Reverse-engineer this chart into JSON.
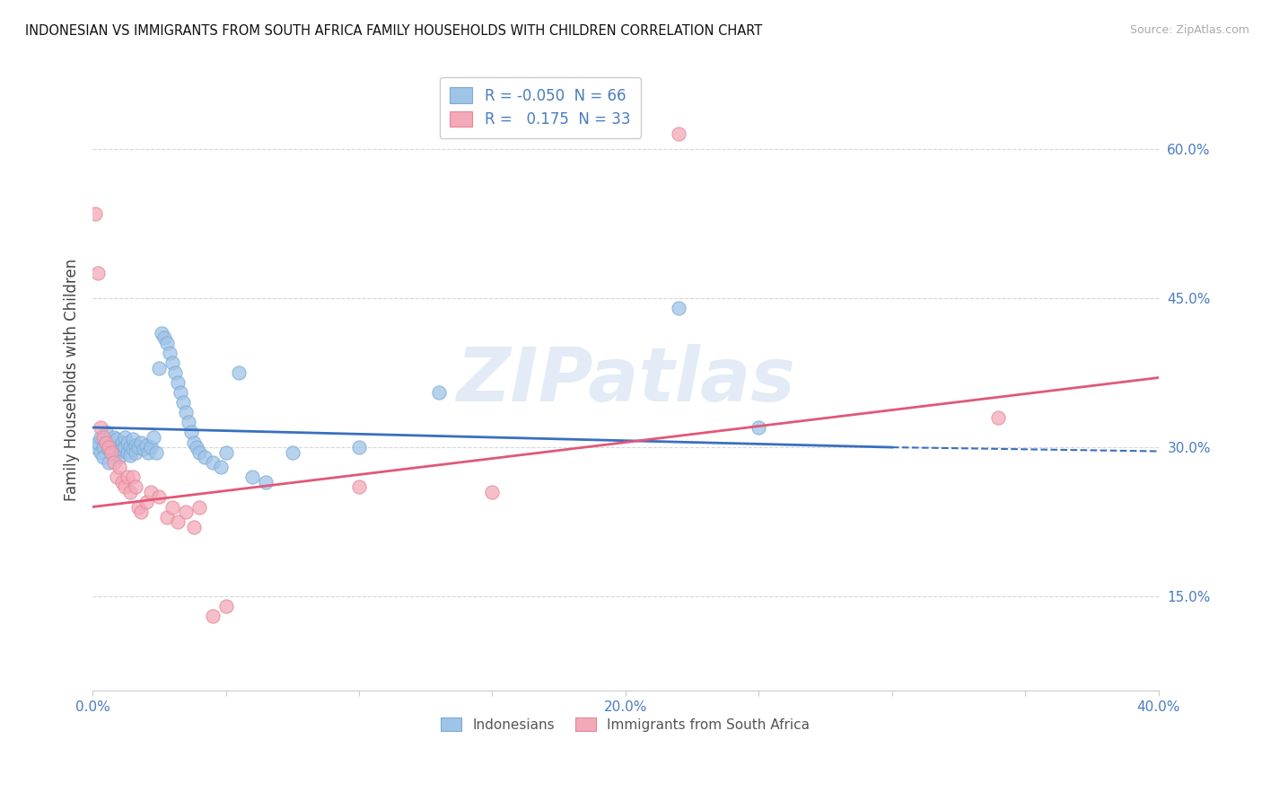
{
  "title": "INDONESIAN VS IMMIGRANTS FROM SOUTH AFRICA FAMILY HOUSEHOLDS WITH CHILDREN CORRELATION CHART",
  "source": "Source: ZipAtlas.com",
  "ylabel": "Family Households with Children",
  "xlim": [
    0.0,
    0.4
  ],
  "ylim": [
    0.055,
    0.68
  ],
  "xticks": [
    0.0,
    0.05,
    0.1,
    0.15,
    0.2,
    0.25,
    0.3,
    0.35,
    0.4
  ],
  "xticklabels": [
    "0.0%",
    "",
    "",
    "",
    "20.0%",
    "",
    "",
    "",
    "40.0%"
  ],
  "yticks": [
    0.15,
    0.3,
    0.45,
    0.6
  ],
  "yticklabels": [
    "15.0%",
    "30.0%",
    "45.0%",
    "60.0%"
  ],
  "legend_r_n": [
    {
      "R": "-0.050",
      "N": "66"
    },
    {
      "R": "0.175",
      "N": "33"
    }
  ],
  "legend_entries": [
    {
      "label": "Indonesians"
    },
    {
      "label": "Immigrants from South Africa"
    }
  ],
  "blue_dots": [
    [
      0.001,
      0.3
    ],
    [
      0.002,
      0.305
    ],
    [
      0.003,
      0.295
    ],
    [
      0.003,
      0.31
    ],
    [
      0.004,
      0.3
    ],
    [
      0.004,
      0.29
    ],
    [
      0.005,
      0.305
    ],
    [
      0.005,
      0.315
    ],
    [
      0.006,
      0.298
    ],
    [
      0.006,
      0.285
    ],
    [
      0.007,
      0.302
    ],
    [
      0.007,
      0.295
    ],
    [
      0.008,
      0.31
    ],
    [
      0.008,
      0.3
    ],
    [
      0.009,
      0.295
    ],
    [
      0.009,
      0.308
    ],
    [
      0.01,
      0.3
    ],
    [
      0.01,
      0.29
    ],
    [
      0.011,
      0.305
    ],
    [
      0.011,
      0.298
    ],
    [
      0.012,
      0.3
    ],
    [
      0.012,
      0.31
    ],
    [
      0.013,
      0.295
    ],
    [
      0.013,
      0.305
    ],
    [
      0.014,
      0.3
    ],
    [
      0.014,
      0.292
    ],
    [
      0.015,
      0.298
    ],
    [
      0.015,
      0.308
    ],
    [
      0.016,
      0.302
    ],
    [
      0.016,
      0.295
    ],
    [
      0.017,
      0.3
    ],
    [
      0.018,
      0.305
    ],
    [
      0.019,
      0.298
    ],
    [
      0.02,
      0.302
    ],
    [
      0.021,
      0.295
    ],
    [
      0.022,
      0.3
    ],
    [
      0.023,
      0.31
    ],
    [
      0.024,
      0.295
    ],
    [
      0.025,
      0.38
    ],
    [
      0.026,
      0.415
    ],
    [
      0.027,
      0.41
    ],
    [
      0.028,
      0.405
    ],
    [
      0.029,
      0.395
    ],
    [
      0.03,
      0.385
    ],
    [
      0.031,
      0.375
    ],
    [
      0.032,
      0.365
    ],
    [
      0.033,
      0.355
    ],
    [
      0.034,
      0.345
    ],
    [
      0.035,
      0.335
    ],
    [
      0.036,
      0.325
    ],
    [
      0.037,
      0.315
    ],
    [
      0.038,
      0.305
    ],
    [
      0.039,
      0.3
    ],
    [
      0.04,
      0.295
    ],
    [
      0.042,
      0.29
    ],
    [
      0.045,
      0.285
    ],
    [
      0.048,
      0.28
    ],
    [
      0.05,
      0.295
    ],
    [
      0.055,
      0.375
    ],
    [
      0.06,
      0.27
    ],
    [
      0.065,
      0.265
    ],
    [
      0.075,
      0.295
    ],
    [
      0.1,
      0.3
    ],
    [
      0.13,
      0.355
    ],
    [
      0.22,
      0.44
    ],
    [
      0.25,
      0.32
    ]
  ],
  "pink_dots": [
    [
      0.001,
      0.535
    ],
    [
      0.002,
      0.475
    ],
    [
      0.003,
      0.32
    ],
    [
      0.004,
      0.31
    ],
    [
      0.005,
      0.305
    ],
    [
      0.006,
      0.3
    ],
    [
      0.007,
      0.295
    ],
    [
      0.008,
      0.285
    ],
    [
      0.009,
      0.27
    ],
    [
      0.01,
      0.28
    ],
    [
      0.011,
      0.265
    ],
    [
      0.012,
      0.26
    ],
    [
      0.013,
      0.27
    ],
    [
      0.014,
      0.255
    ],
    [
      0.015,
      0.27
    ],
    [
      0.016,
      0.26
    ],
    [
      0.017,
      0.24
    ],
    [
      0.018,
      0.235
    ],
    [
      0.02,
      0.245
    ],
    [
      0.022,
      0.255
    ],
    [
      0.025,
      0.25
    ],
    [
      0.028,
      0.23
    ],
    [
      0.03,
      0.24
    ],
    [
      0.032,
      0.225
    ],
    [
      0.035,
      0.235
    ],
    [
      0.038,
      0.22
    ],
    [
      0.04,
      0.24
    ],
    [
      0.045,
      0.13
    ],
    [
      0.05,
      0.14
    ],
    [
      0.1,
      0.26
    ],
    [
      0.15,
      0.255
    ],
    [
      0.22,
      0.615
    ],
    [
      0.34,
      0.33
    ]
  ],
  "blue_line_solid": {
    "x": [
      0.0,
      0.3
    ],
    "y": [
      0.32,
      0.3
    ]
  },
  "blue_line_dash": {
    "x": [
      0.3,
      0.4
    ],
    "y": [
      0.3,
      0.296
    ]
  },
  "pink_line": {
    "x": [
      0.0,
      0.4
    ],
    "y": [
      0.24,
      0.37
    ]
  },
  "dot_size": 120,
  "blue_dot_color": "#9ec4e8",
  "blue_dot_edge": "#7aaad4",
  "pink_dot_color": "#f4a8b8",
  "pink_dot_edge": "#e08898",
  "blue_line_color": "#3a6fc0",
  "pink_line_color": "#e05878",
  "grid_color": "#cccccc",
  "tick_label_color": "#4a7cc0",
  "ylabel_color": "#444444",
  "background_color": "#ffffff",
  "watermark": "ZIPatlas",
  "watermark_color": "#d0dff0"
}
